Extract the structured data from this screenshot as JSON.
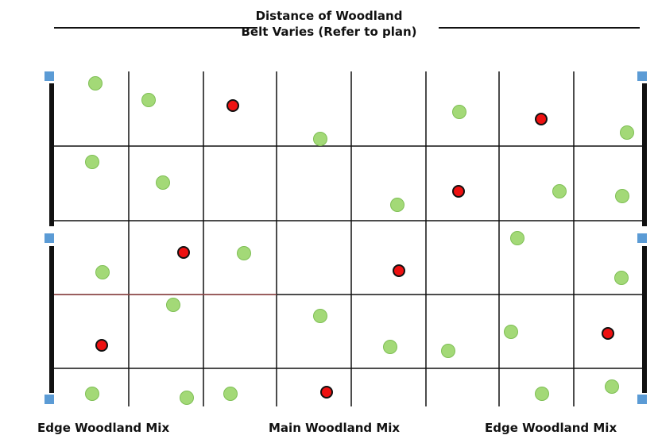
{
  "title": {
    "line1": "Distance of Woodland",
    "line2": "Belt Varies (Refer to plan)"
  },
  "captions": {
    "left": "Edge Woodland Mix",
    "middle": "Main Woodland Mix",
    "right": "Edge Woodland Mix"
  },
  "colors": {
    "green_tree": "#a3d977",
    "red_tree": "#ee1111",
    "post_marker": "#5b9bd5",
    "grid_line": "#111111",
    "highlight_line": "#a05050"
  },
  "grid": {
    "columns": 8,
    "rows": 5
  },
  "trees": {
    "green": [
      [
        1,
        0
      ],
      [
        2,
        0
      ],
      [
        4,
        1
      ],
      [
        6,
        0
      ],
      [
        8,
        1
      ],
      [
        1,
        1
      ],
      [
        2,
        1
      ],
      [
        5,
        2
      ],
      [
        7,
        2
      ],
      [
        8,
        2
      ],
      [
        1,
        3
      ],
      [
        3,
        3
      ],
      [
        7,
        3
      ],
      [
        8,
        4
      ],
      [
        2,
        4
      ],
      [
        4,
        4
      ],
      [
        5,
        4
      ],
      [
        6,
        4
      ],
      [
        7,
        4
      ],
      [
        1,
        5
      ],
      [
        2,
        5
      ],
      [
        3,
        5
      ],
      [
        7,
        5
      ],
      [
        8,
        5
      ]
    ],
    "red": [
      [
        3,
        0
      ],
      [
        7,
        0
      ],
      [
        6,
        2
      ],
      [
        2,
        3
      ],
      [
        5,
        3
      ],
      [
        1,
        4
      ],
      [
        8,
        4
      ],
      [
        4,
        5
      ]
    ]
  }
}
